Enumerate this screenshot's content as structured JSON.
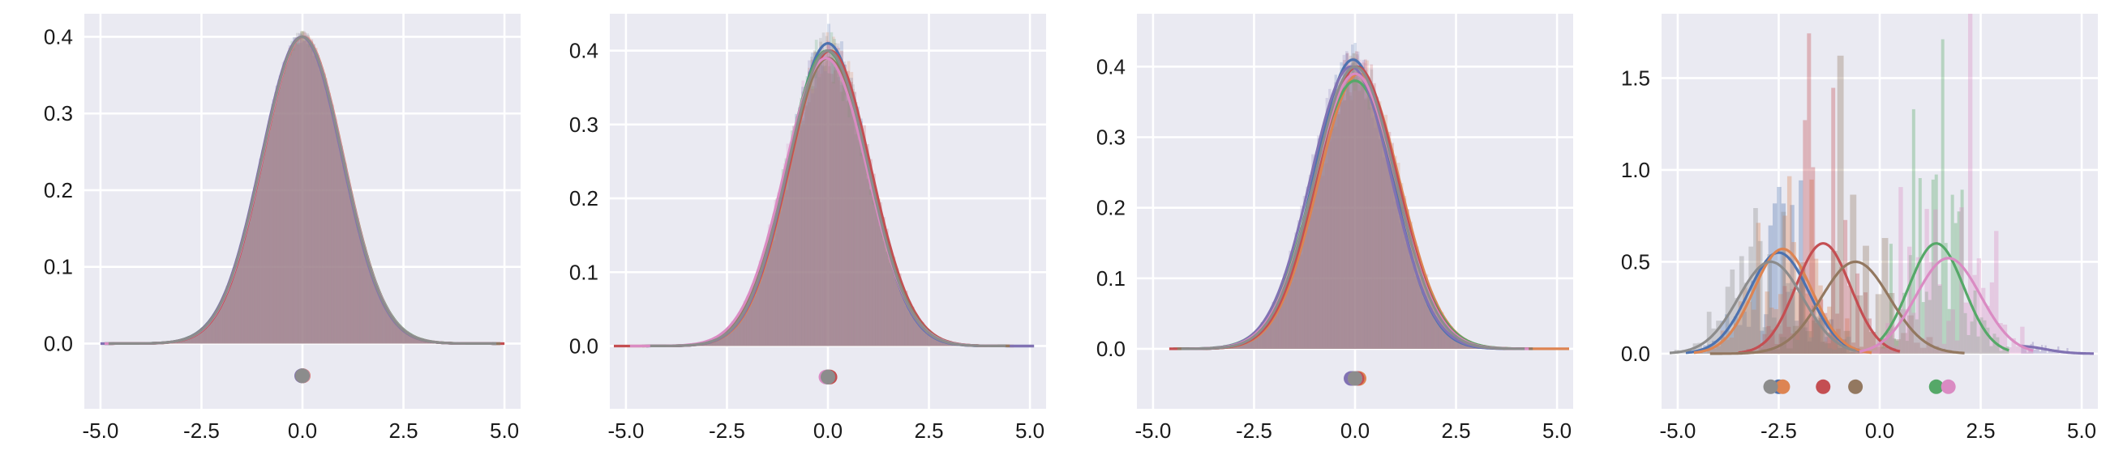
{
  "colors": {
    "background": "#eaeaf2",
    "grid": "#ffffff",
    "series": [
      "#4c72b0",
      "#dd8452",
      "#55a868",
      "#c44e52",
      "#8172b3",
      "#937860",
      "#da8bc3",
      "#8c8c8c"
    ]
  },
  "chart_data": [
    {
      "type": "histogram+kde",
      "xlim": [
        -5.4,
        5.4
      ],
      "ylim": [
        -0.085,
        0.43
      ],
      "xticks": [
        -5.0,
        -2.5,
        0.0,
        2.5,
        5.0
      ],
      "xtick_labels": [
        "-5.0",
        "-2.5",
        "0.0",
        "2.5",
        "5.0"
      ],
      "yticks": [
        0.0,
        0.1,
        0.2,
        0.3,
        0.4
      ],
      "ytick_labels": [
        "0.0",
        "0.1",
        "0.2",
        "0.3",
        "0.4"
      ],
      "grid": true,
      "mean_marker_y": -0.042,
      "series": [
        {
          "mean": -0.01,
          "sd": 1.0,
          "peak": 0.4,
          "range": [
            -4.9,
            4.9
          ]
        },
        {
          "mean": 0.02,
          "sd": 1.0,
          "peak": 0.4,
          "range": [
            -4.8,
            4.9
          ]
        },
        {
          "mean": 0.0,
          "sd": 1.01,
          "peak": 0.4,
          "range": [
            -4.9,
            4.8
          ]
        },
        {
          "mean": 0.01,
          "sd": 0.99,
          "peak": 0.4,
          "range": [
            -4.8,
            5.0
          ]
        },
        {
          "mean": -0.02,
          "sd": 1.0,
          "peak": 0.4,
          "range": [
            -5.0,
            4.8
          ]
        },
        {
          "mean": 0.0,
          "sd": 1.0,
          "peak": 0.4,
          "range": [
            -4.7,
            4.9
          ]
        },
        {
          "mean": 0.01,
          "sd": 1.0,
          "peak": 0.4,
          "range": [
            -4.9,
            4.7
          ]
        },
        {
          "mean": 0.0,
          "sd": 1.0,
          "peak": 0.4,
          "range": [
            -4.8,
            4.8
          ]
        }
      ]
    },
    {
      "type": "histogram+kde",
      "xlim": [
        -5.4,
        5.4
      ],
      "ylim": [
        -0.085,
        0.45
      ],
      "xticks": [
        -5.0,
        -2.5,
        0.0,
        2.5,
        5.0
      ],
      "xtick_labels": [
        "-5.0",
        "-2.5",
        "0.0",
        "2.5",
        "5.0"
      ],
      "yticks": [
        0.0,
        0.1,
        0.2,
        0.3,
        0.4
      ],
      "ytick_labels": [
        "0.0",
        "0.1",
        "0.2",
        "0.3",
        "0.4"
      ],
      "grid": true,
      "mean_marker_y": -0.042,
      "series": [
        {
          "mean": 0.0,
          "sd": 0.98,
          "peak": 0.41,
          "range": [
            -4.5,
            5.1
          ]
        },
        {
          "mean": 0.05,
          "sd": 1.0,
          "peak": 0.4,
          "range": [
            -4.4,
            4.6
          ]
        },
        {
          "mean": -0.03,
          "sd": 1.01,
          "peak": 0.4,
          "range": [
            -4.6,
            4.4
          ]
        },
        {
          "mean": 0.05,
          "sd": 1.01,
          "peak": 0.4,
          "range": [
            -5.3,
            4.3
          ]
        },
        {
          "mean": 0.0,
          "sd": 0.99,
          "peak": 0.4,
          "range": [
            -4.5,
            5.1
          ]
        },
        {
          "mean": 0.0,
          "sd": 1.02,
          "peak": 0.39,
          "range": [
            -4.2,
            4.5
          ]
        },
        {
          "mean": -0.05,
          "sd": 1.03,
          "peak": 0.39,
          "range": [
            -4.9,
            4.2
          ]
        },
        {
          "mean": 0.0,
          "sd": 1.0,
          "peak": 0.4,
          "range": [
            -4.4,
            4.4
          ]
        }
      ]
    },
    {
      "type": "histogram+kde",
      "xlim": [
        -5.4,
        5.4
      ],
      "ylim": [
        -0.085,
        0.475
      ],
      "xticks": [
        -5.0,
        -2.5,
        0.0,
        2.5,
        5.0
      ],
      "xtick_labels": [
        "-5.0",
        "-2.5",
        "0.0",
        "2.5",
        "5.0"
      ],
      "yticks": [
        0.0,
        0.1,
        0.2,
        0.3,
        0.4
      ],
      "ytick_labels": [
        "0.0",
        "0.1",
        "0.2",
        "0.3",
        "0.4"
      ],
      "grid": true,
      "mean_marker_y": -0.042,
      "series": [
        {
          "mean": -0.05,
          "sd": 0.96,
          "peak": 0.41,
          "range": [
            -4.2,
            4.0
          ]
        },
        {
          "mean": 0.1,
          "sd": 1.01,
          "peak": 0.39,
          "range": [
            -4.0,
            5.3
          ]
        },
        {
          "mean": 0.0,
          "sd": 1.05,
          "peak": 0.38,
          "range": [
            -4.5,
            4.2
          ]
        },
        {
          "mean": 0.05,
          "sd": 1.0,
          "peak": 0.4,
          "range": [
            -4.6,
            4.3
          ]
        },
        {
          "mean": -0.1,
          "sd": 1.0,
          "peak": 0.4,
          "range": [
            -4.3,
            4.1
          ]
        },
        {
          "mean": 0.0,
          "sd": 1.01,
          "peak": 0.39,
          "range": [
            -4.4,
            4.4
          ]
        },
        {
          "mean": 0.0,
          "sd": 1.02,
          "peak": 0.39,
          "range": [
            -4.1,
            4.3
          ]
        },
        {
          "mean": 0.0,
          "sd": 1.0,
          "peak": 0.4,
          "range": [
            -4.3,
            4.2
          ]
        }
      ]
    },
    {
      "type": "histogram+kde",
      "xlim": [
        -5.4,
        5.4
      ],
      "ylim": [
        -0.3,
        1.85
      ],
      "xticks": [
        -5.0,
        -2.5,
        0.0,
        2.5,
        5.0
      ],
      "xtick_labels": [
        "-5.0",
        "-2.5",
        "0.0",
        "2.5",
        "5.0"
      ],
      "yticks": [
        0.0,
        0.5,
        1.0,
        1.5
      ],
      "ytick_labels": [
        "0.0",
        "0.5",
        "1.0",
        "1.5"
      ],
      "grid": true,
      "mean_marker_y": -0.18,
      "series": [
        {
          "mean": -2.5,
          "sd": 0.75,
          "peak": 0.55,
          "range": [
            -4.8,
            -0.5
          ]
        },
        {
          "mean": -2.4,
          "sd": 0.72,
          "peak": 0.57,
          "range": [
            -4.6,
            -0.2
          ]
        },
        {
          "mean": 1.4,
          "sd": 0.68,
          "peak": 0.6,
          "range": [
            0.0,
            3.2
          ]
        },
        {
          "mean": -1.4,
          "sd": 0.68,
          "peak": 0.6,
          "range": [
            -3.5,
            0.5
          ]
        },
        {
          "mean": 3.5,
          "sd": 0.6,
          "peak": 0.04,
          "range": [
            3.5,
            5.3
          ]
        },
        {
          "mean": -0.6,
          "sd": 0.85,
          "peak": 0.5,
          "range": [
            -4.2,
            2.1
          ]
        },
        {
          "mean": 1.7,
          "sd": 0.8,
          "peak": 0.52,
          "range": [
            -0.5,
            3.8
          ]
        },
        {
          "mean": -2.7,
          "sd": 0.8,
          "peak": 0.5,
          "range": [
            -5.2,
            -0.6
          ]
        }
      ]
    }
  ]
}
